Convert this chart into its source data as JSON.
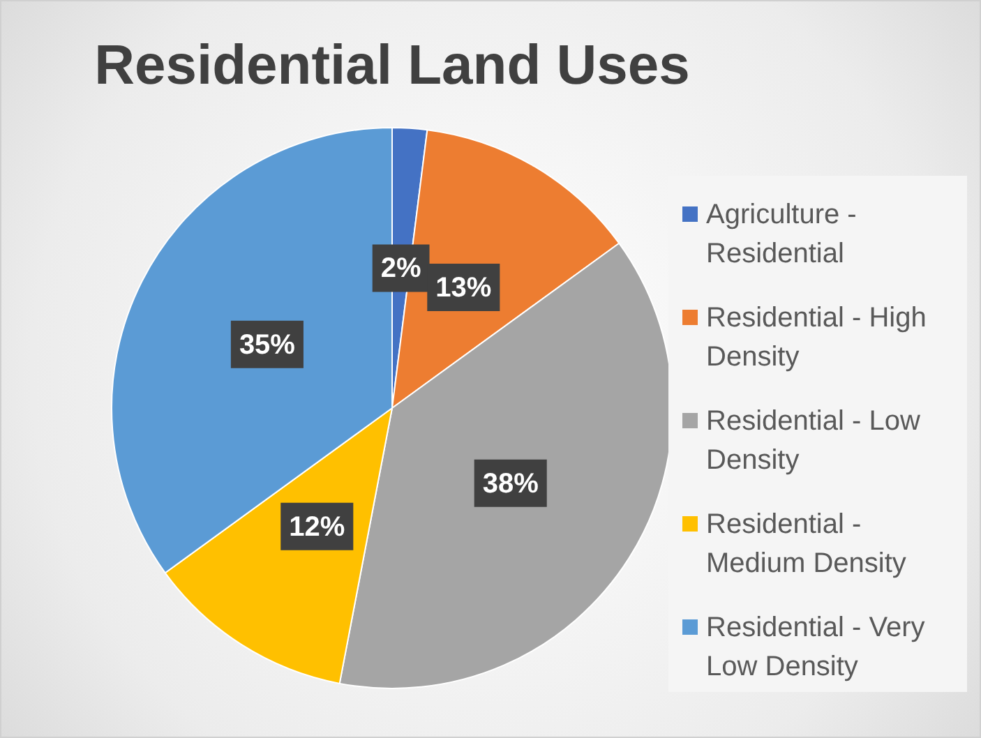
{
  "chart_data": {
    "type": "pie",
    "title": "Residential Land Uses",
    "categories": [
      "Agriculture - Residential",
      "Residential - High Density",
      "Residential - Low Density",
      "Residential - Medium Density",
      "Residential - Very Low Density"
    ],
    "values": [
      2,
      13,
      38,
      12,
      35
    ],
    "value_labels": [
      "2%",
      "13%",
      "38%",
      "12%",
      "35%"
    ],
    "colors": [
      "#4472c4",
      "#ed7d31",
      "#a5a5a5",
      "#ffc000",
      "#5b9bd5"
    ],
    "legend": "right"
  }
}
